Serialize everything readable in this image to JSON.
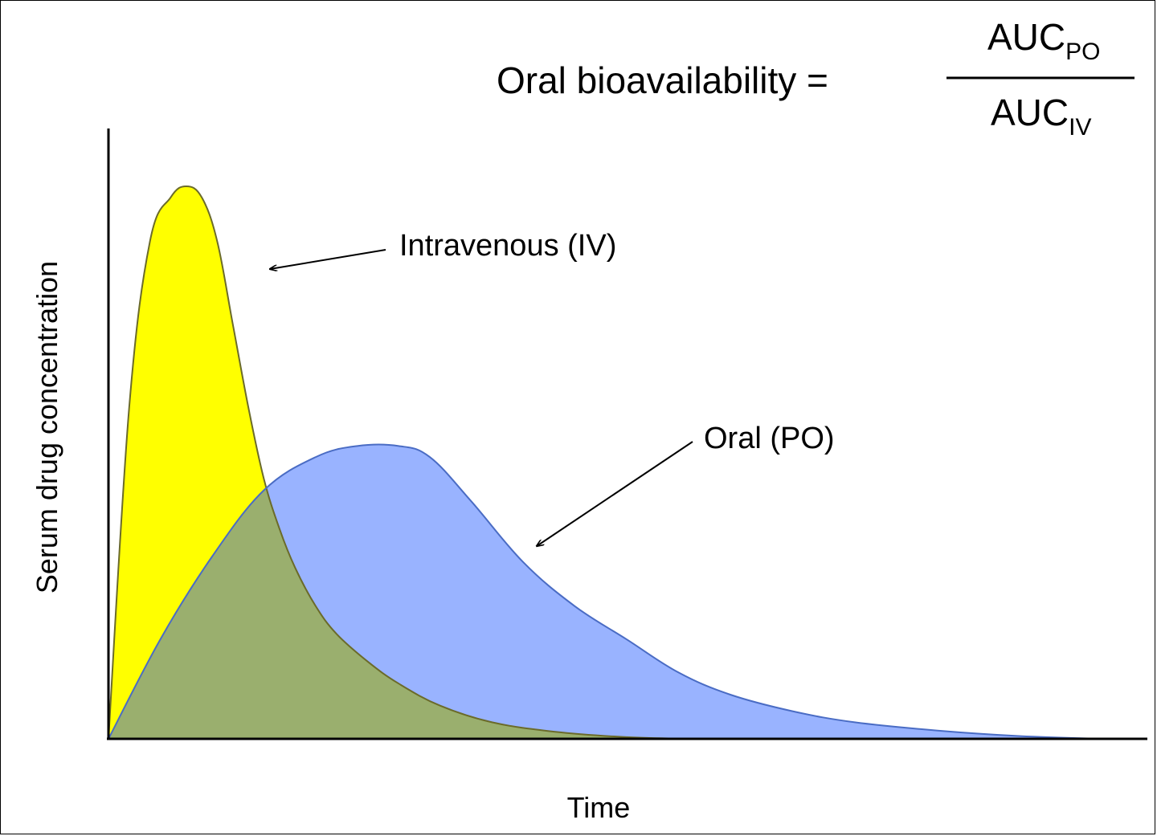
{
  "formula": {
    "lhs": "Oral bioavailability =",
    "numerator_base": "AUC",
    "numerator_sub": "PO",
    "denominator_base": "AUC",
    "denominator_sub": "IV"
  },
  "chart_data": {
    "type": "area",
    "title": "",
    "xlabel": "Time",
    "ylabel": "Serum drug concentration",
    "x_ticks": false,
    "y_ticks": false,
    "grid": false,
    "xlim": [
      0,
      100
    ],
    "ylim": [
      0,
      100
    ],
    "series": [
      {
        "name": "Intravenous (IV)",
        "color": "#ffff00",
        "x": [
          0,
          2,
          4,
          6,
          7.5,
          9,
          10.5,
          12,
          13.5,
          15,
          16.5,
          18,
          20,
          22,
          25,
          28,
          32,
          37,
          43,
          50,
          56
        ],
        "y": [
          0,
          60,
          90,
          98,
          100,
          98,
          90,
          75,
          60,
          47,
          38,
          31,
          24,
          19,
          14,
          10,
          6,
          3,
          1.3,
          0.3,
          0
        ]
      },
      {
        "name": "Oral (PO)",
        "color": "#99b3ff",
        "x": [
          0,
          5,
          10,
          15,
          20,
          24,
          28,
          31,
          35,
          40,
          45,
          50,
          55,
          60,
          66,
          72,
          80,
          88,
          96
        ],
        "y": [
          0,
          18,
          33,
          45,
          51,
          53,
          53,
          51,
          43,
          32,
          24,
          18,
          12,
          8,
          5,
          3,
          1.5,
          0.5,
          0
        ]
      }
    ],
    "overlap_color": "#9aaf6e",
    "annotations": [
      {
        "text": "Intravenous (IV)",
        "target_series": "Intravenous (IV)"
      },
      {
        "text": "Oral (PO)",
        "target_series": "Oral (PO)"
      }
    ]
  }
}
